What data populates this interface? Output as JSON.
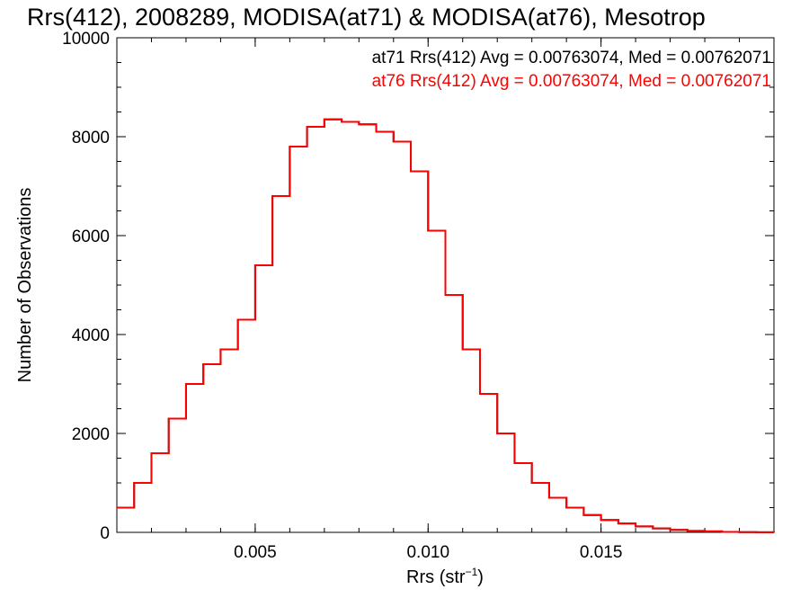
{
  "chart_data": {
    "type": "line",
    "step": true,
    "title": "Rrs(412), 2008289, MODISA(at71) & MODISA(at76), Mesotrop",
    "xlabel_main": "Rrs (str",
    "xlabel_sup": "−1",
    "xlabel_tail": ")",
    "ylabel": "Number of Observations",
    "xlim": [
      0.001,
      0.02
    ],
    "ylim": [
      0,
      10000
    ],
    "grid": false,
    "x_ticks": [
      0.005,
      0.01,
      0.015
    ],
    "x_tick_labels": [
      "0.005",
      "0.010",
      "0.015"
    ],
    "y_ticks": [
      0,
      2000,
      4000,
      6000,
      8000,
      10000
    ],
    "y_tick_labels": [
      "0",
      "2000",
      "4000",
      "6000",
      "8000",
      "10000"
    ],
    "annotations": [
      {
        "text": "at71 Rrs(412) Avg = 0.00763074, Med = 0.00762071",
        "color": "#000000"
      },
      {
        "text": "at76 Rrs(412) Avg = 0.00763074, Med = 0.00762071",
        "color": "#ff0000"
      }
    ],
    "series": [
      {
        "name": "at71",
        "color": "#000000",
        "x": [
          0.001,
          0.0015,
          0.002,
          0.0025,
          0.003,
          0.0035,
          0.004,
          0.0045,
          0.005,
          0.0055,
          0.006,
          0.0065,
          0.007,
          0.0075,
          0.008,
          0.0085,
          0.009,
          0.0095,
          0.01,
          0.0105,
          0.011,
          0.0115,
          0.012,
          0.0125,
          0.013,
          0.0135,
          0.014,
          0.0145,
          0.015,
          0.0155,
          0.016,
          0.0165,
          0.017,
          0.0175,
          0.018,
          0.0185,
          0.019,
          0.0195,
          0.02
        ],
        "y": [
          500,
          1000,
          1600,
          2300,
          3000,
          3400,
          3700,
          4300,
          5400,
          6800,
          7800,
          8200,
          8350,
          8300,
          8250,
          8100,
          7900,
          7300,
          6100,
          4800,
          3700,
          2800,
          2000,
          1400,
          1000,
          700,
          500,
          350,
          250,
          180,
          120,
          80,
          50,
          30,
          20,
          10,
          5,
          3,
          1
        ]
      },
      {
        "name": "at76",
        "color": "#ff0000",
        "x": [
          0.001,
          0.0015,
          0.002,
          0.0025,
          0.003,
          0.0035,
          0.004,
          0.0045,
          0.005,
          0.0055,
          0.006,
          0.0065,
          0.007,
          0.0075,
          0.008,
          0.0085,
          0.009,
          0.0095,
          0.01,
          0.0105,
          0.011,
          0.0115,
          0.012,
          0.0125,
          0.013,
          0.0135,
          0.014,
          0.0145,
          0.015,
          0.0155,
          0.016,
          0.0165,
          0.017,
          0.0175,
          0.018,
          0.0185,
          0.019,
          0.0195,
          0.02
        ],
        "y": [
          500,
          1000,
          1600,
          2300,
          3000,
          3400,
          3700,
          4300,
          5400,
          6800,
          7800,
          8200,
          8350,
          8300,
          8250,
          8100,
          7900,
          7300,
          6100,
          4800,
          3700,
          2800,
          2000,
          1400,
          1000,
          700,
          500,
          350,
          250,
          180,
          120,
          80,
          50,
          30,
          20,
          10,
          5,
          3,
          1
        ]
      }
    ]
  }
}
